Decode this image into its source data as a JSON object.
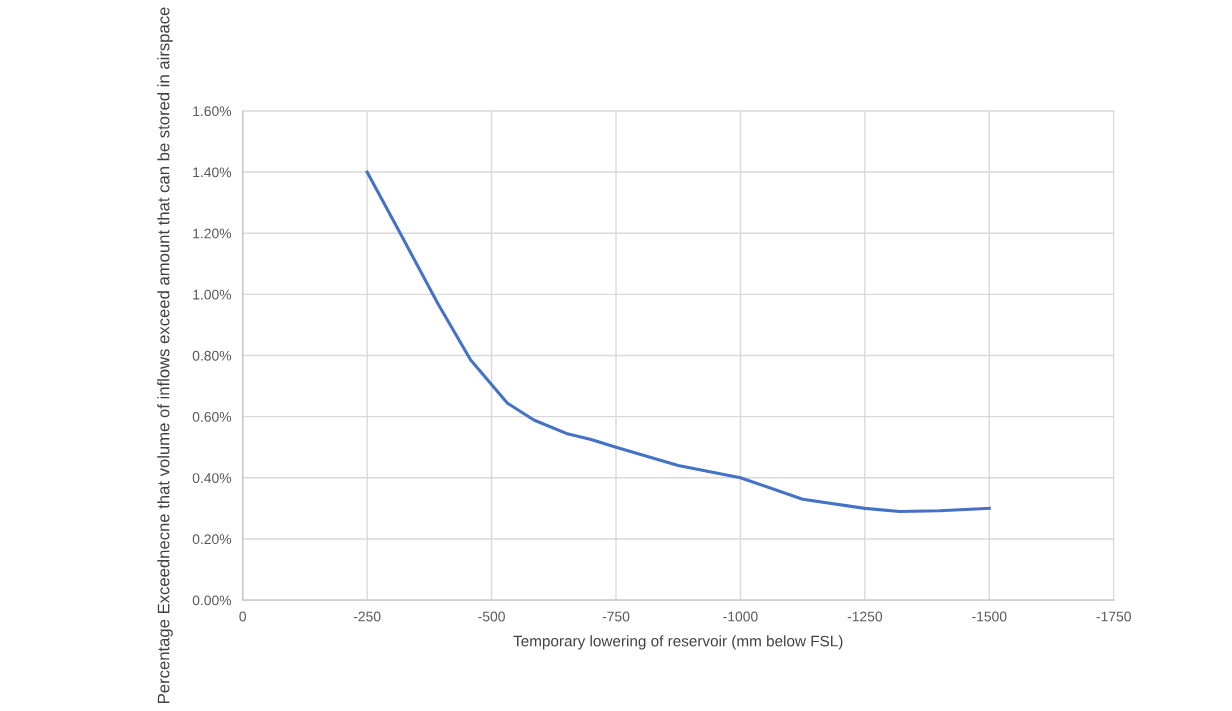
{
  "chart_data": {
    "type": "line",
    "xlabel": "Temporary lowering of reservoir (mm below FSL)",
    "ylabel": "Percentage Exceednecne that volume of inflows exceed amount that can be stored in airspace",
    "x": [
      -250,
      -323,
      -392,
      -458,
      -532,
      -585,
      -650,
      -700,
      -750,
      -875,
      -1000,
      -1125,
      -1250,
      -1320,
      -1400,
      -1500
    ],
    "series": [
      {
        "color": "#4472c4",
        "values": [
          1.4,
          1.18,
          0.97,
          0.785,
          0.644,
          0.589,
          0.545,
          0.525,
          0.5,
          0.44,
          0.4,
          0.33,
          0.3,
          0.29,
          0.292,
          0.3
        ]
      }
    ],
    "xlim": [
      0,
      -1750
    ],
    "xticks": [
      0,
      -250,
      -500,
      -750,
      -1000,
      -1250,
      -1500,
      -1750
    ],
    "ylim": [
      0,
      1.6
    ],
    "yticks": [
      {
        "value": 0,
        "label": "0.00%"
      },
      {
        "value": 0.2,
        "label": "0.20%"
      },
      {
        "value": 0.4,
        "label": "0.40%"
      },
      {
        "value": 0.6,
        "label": "0.60%"
      },
      {
        "value": 0.8,
        "label": "0.80%"
      },
      {
        "value": 1.0,
        "label": "1.00%"
      },
      {
        "value": 1.2,
        "label": "1.20%"
      },
      {
        "value": 1.4,
        "label": "1.40%"
      },
      {
        "value": 1.6,
        "label": "1.60%"
      }
    ],
    "grid": true
  }
}
